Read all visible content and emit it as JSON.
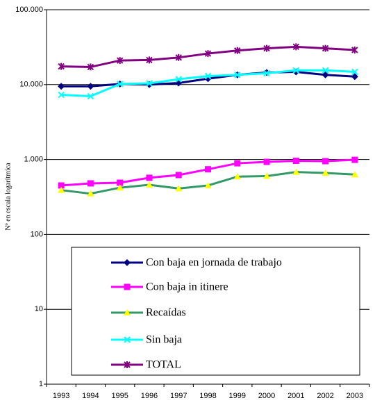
{
  "chart_data": {
    "type": "line",
    "y_label": "Nº en escala logarítmica",
    "categories": [
      "1993",
      "1994",
      "1995",
      "1996",
      "1997",
      "1998",
      "1999",
      "2000",
      "2001",
      "2002",
      "2003"
    ],
    "log_scale": true,
    "ylim": [
      1,
      100000
    ],
    "yticks": [
      1,
      10,
      100,
      {
        "value": 1000,
        "label": "1.000"
      },
      {
        "value": 10000,
        "label": "10.000"
      },
      {
        "value": 100000,
        "label": "100.000"
      }
    ],
    "grid": true,
    "series": [
      {
        "name": "Con baja en jornada de trabajo",
        "color": "#000080",
        "marker": "diamond",
        "marker_color": "#000080",
        "values": [
          9500,
          9500,
          10200,
          10000,
          10500,
          12000,
          13500,
          14500,
          14800,
          13500,
          12800
        ]
      },
      {
        "name": "Con baja in itinere",
        "color": "#ff00ff",
        "marker": "square",
        "marker_color": "#ff00ff",
        "values": [
          450,
          480,
          490,
          570,
          620,
          740,
          890,
          930,
          960,
          950,
          990
        ]
      },
      {
        "name": "Recaídas",
        "color": "#339966",
        "marker": "triangle",
        "marker_color": "#ffff00",
        "values": [
          390,
          350,
          420,
          460,
          410,
          450,
          590,
          600,
          680,
          660,
          630
        ]
      },
      {
        "name": "Sin baja",
        "color": "#00ffff",
        "marker": "x",
        "marker_color": "#00ffff",
        "values": [
          7300,
          7000,
          10200,
          10400,
          11800,
          13000,
          13500,
          14200,
          15500,
          15500,
          14800
        ]
      },
      {
        "name": "TOTAL",
        "color": "#800080",
        "marker": "asterisk",
        "marker_color": "#800080",
        "values": [
          17500,
          17200,
          21000,
          21300,
          23000,
          26000,
          28500,
          30500,
          32000,
          30500,
          29000
        ]
      }
    ]
  }
}
